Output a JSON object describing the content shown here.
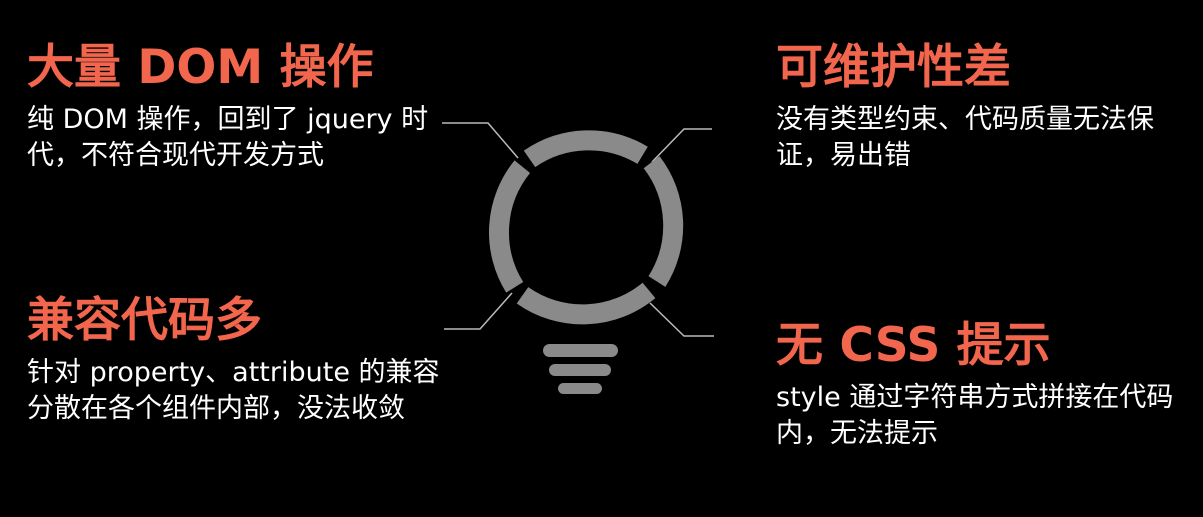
{
  "colors": {
    "background": "#000000",
    "title": "#F2664E",
    "text": "#FFFFFF",
    "bulb": "#8A8A8A",
    "connector": "#BBBBBB"
  },
  "icons": {
    "center": "lightbulb-icon"
  },
  "items": [
    {
      "title": "大量 DOM 操作",
      "desc": "纯 DOM 操作，回到了 jquery 时代，不符合现代开发方式"
    },
    {
      "title": "可维护性差",
      "desc": "没有类型约束、代码质量无法保证，易出错"
    },
    {
      "title": "兼容代码多",
      "desc": "针对 property、attribute 的兼容分散在各个组件内部，没法收敛"
    },
    {
      "title": "无 CSS 提示",
      "desc": "style 通过字符串方式拼接在代码内，无法提示"
    }
  ]
}
